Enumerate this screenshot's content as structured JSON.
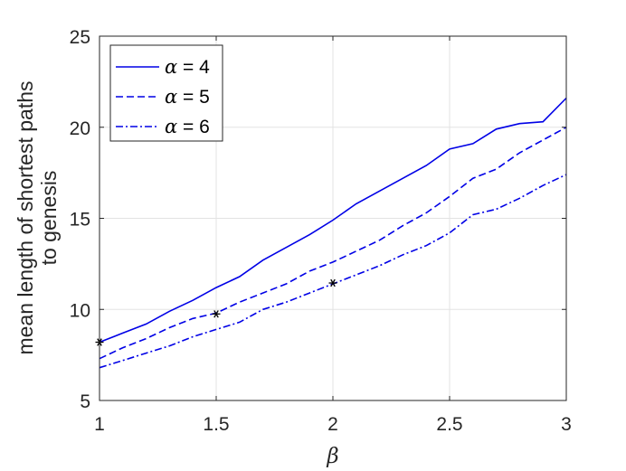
{
  "chart_data": {
    "type": "line",
    "xlabel": "β",
    "ylabel_lines": [
      "mean length of shortest paths",
      "to genesis"
    ],
    "xlim": [
      1,
      3
    ],
    "ylim": [
      5,
      25
    ],
    "xticks": [
      1,
      1.5,
      2,
      2.5,
      3
    ],
    "yticks": [
      5,
      10,
      15,
      20,
      25
    ],
    "xtick_labels": [
      "1",
      "1.5",
      "2",
      "2.5",
      "3"
    ],
    "ytick_labels": [
      "5",
      "10",
      "15",
      "20",
      "25"
    ],
    "grid": true,
    "legend_position": "top-left",
    "x": [
      1.0,
      1.1,
      1.2,
      1.3,
      1.4,
      1.5,
      1.6,
      1.7,
      1.8,
      1.9,
      2.0,
      2.1,
      2.2,
      2.3,
      2.4,
      2.5,
      2.6,
      2.7,
      2.8,
      2.9,
      3.0
    ],
    "series": [
      {
        "name": "α = 4",
        "legend_symbol": "α",
        "legend_value": "= 4",
        "style": "solid",
        "color": "#0000e6",
        "values": [
          8.2,
          8.7,
          9.2,
          9.9,
          10.5,
          11.2,
          11.8,
          12.7,
          13.4,
          14.1,
          14.9,
          15.8,
          16.5,
          17.2,
          17.9,
          18.8,
          19.1,
          19.9,
          20.2,
          20.3,
          21.6
        ]
      },
      {
        "name": "α = 5",
        "legend_symbol": "α",
        "legend_value": "= 5",
        "style": "dashed",
        "color": "#0000e6",
        "values": [
          7.3,
          7.9,
          8.4,
          9.0,
          9.5,
          9.8,
          10.4,
          10.9,
          11.4,
          12.1,
          12.6,
          13.2,
          13.8,
          14.6,
          15.3,
          16.2,
          17.2,
          17.7,
          18.6,
          19.3,
          20.0
        ]
      },
      {
        "name": "α = 6",
        "legend_symbol": "α",
        "legend_value": "= 6",
        "style": "dashdot",
        "color": "#0000e6",
        "values": [
          6.8,
          7.2,
          7.6,
          8.0,
          8.5,
          8.9,
          9.3,
          10.0,
          10.4,
          10.9,
          11.4,
          11.9,
          12.4,
          13.0,
          13.5,
          14.2,
          15.2,
          15.5,
          16.1,
          16.8,
          17.4
        ]
      }
    ],
    "markers": [
      {
        "x": 1.0,
        "y": 8.2,
        "symbol": "asterisk",
        "color": "#000000"
      },
      {
        "x": 1.5,
        "y": 9.75,
        "symbol": "asterisk",
        "color": "#000000"
      },
      {
        "x": 2.0,
        "y": 11.45,
        "symbol": "asterisk",
        "color": "#000000"
      }
    ]
  }
}
